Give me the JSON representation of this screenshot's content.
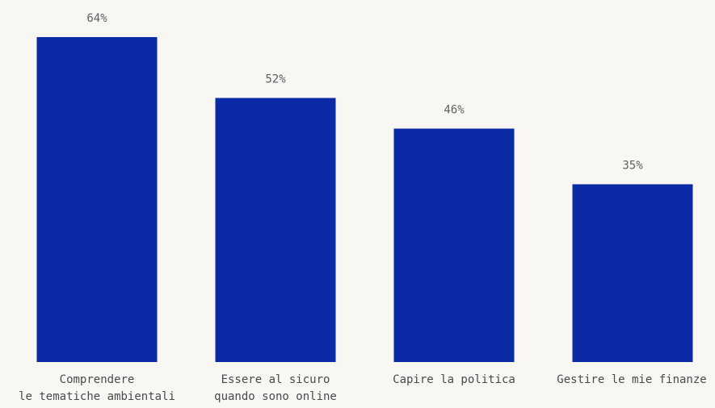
{
  "chart_data": {
    "type": "bar",
    "title": "",
    "xlabel": "",
    "ylabel": "",
    "categories": [
      "Comprendere\nle tematiche ambientali",
      "Essere al sicuro\nquando sono online",
      "Capire la politica",
      "Gestire le mie finanze"
    ],
    "values": [
      64,
      52,
      46,
      35
    ],
    "value_labels": [
      "64%",
      "52%",
      "46%",
      "35%"
    ],
    "unit": "%",
    "ylim": [
      0,
      64
    ],
    "grid": false,
    "legend": "none",
    "colors": {
      "bar": "#0b2ba6",
      "background": "#f8f7f4",
      "value_label": "#5f5f5f",
      "category_label": "#4a4a4a"
    }
  }
}
